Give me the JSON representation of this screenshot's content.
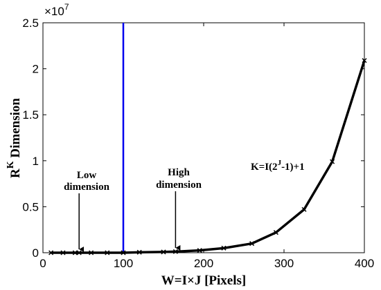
{
  "chart_data": {
    "type": "line",
    "x": [
      10,
      25,
      40,
      45,
      60,
      80,
      100,
      120,
      150,
      165,
      195,
      225,
      260,
      290,
      325,
      360,
      400
    ],
    "series": [
      {
        "values": [
          0,
          0,
          0,
          0,
          0,
          0,
          0,
          0.005,
          0.008,
          0.012,
          0.025,
          0.05,
          0.1,
          0.22,
          0.47,
          0.99,
          2.09
        ]
      }
    ],
    "y_multiplier_label": "×10",
    "y_multiplier_exponent": "7",
    "xlim": [
      0,
      400
    ],
    "ylim": [
      0,
      2.5
    ],
    "xticks": [
      "0",
      "100",
      "200",
      "300",
      "400"
    ],
    "yticks": [
      "0",
      "0.5",
      "1",
      "1.5",
      "2",
      "2.5"
    ],
    "xlabel": "W=I×J  [Pixels]",
    "ylabel": {
      "base": "R",
      "sup": "K",
      "rest": " Dimension"
    },
    "vertical_line": {
      "x": 100,
      "color": "#0000ee"
    },
    "line_color": "#000000",
    "annotations": {
      "low": {
        "line1": "Low",
        "line2": "dimension",
        "arrow_x": 45
      },
      "high": {
        "line1": "High",
        "line2": "dimension",
        "arrow_x": 165
      },
      "formula": {
        "pre": "K=I(2",
        "sup": "J",
        "post": "-1)+1"
      }
    },
    "grid": false
  }
}
